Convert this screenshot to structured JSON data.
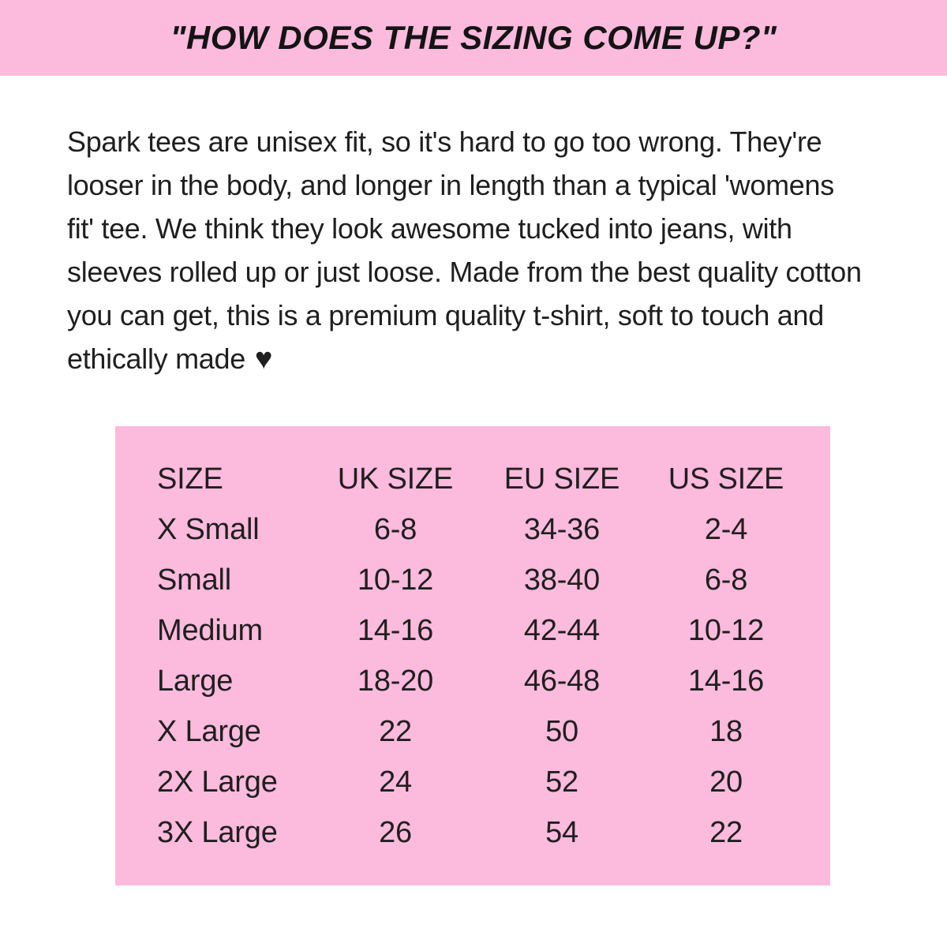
{
  "colors": {
    "accent_pink": "#fcbadd",
    "text": "#1f1f1f",
    "background": "#ffffff"
  },
  "header": {
    "title": "\"HOW DOES THE SIZING COME UP?\""
  },
  "description": {
    "text": "Spark tees are unisex fit, so it's hard to go too wrong. They're\nlooser in the body, and longer in length than a typical 'womens\nfit' tee. We think they look awesome tucked into jeans, with\nsleeves rolled up or just loose. Made from the best quality cotton\nyou can get, this is a premium quality t-shirt, soft to touch and\nethically made",
    "heart": "♥"
  },
  "size_table": {
    "headers": [
      "SIZE",
      "UK SIZE",
      "EU SIZE",
      "US SIZE"
    ],
    "rows": [
      {
        "size": "X Small",
        "uk": "6-8",
        "eu": "34-36",
        "us": "2-4"
      },
      {
        "size": "Small",
        "uk": "10-12",
        "eu": "38-40",
        "us": "6-8"
      },
      {
        "size": "Medium",
        "uk": "14-16",
        "eu": "42-44",
        "us": "10-12"
      },
      {
        "size": "Large",
        "uk": "18-20",
        "eu": "46-48",
        "us": "14-16"
      },
      {
        "size": "X Large",
        "uk": "22",
        "eu": "50",
        "us": "18"
      },
      {
        "size": "2X Large",
        "uk": "24",
        "eu": "52",
        "us": "20"
      },
      {
        "size": "3X Large",
        "uk": "26",
        "eu": "54",
        "us": "22"
      }
    ]
  }
}
